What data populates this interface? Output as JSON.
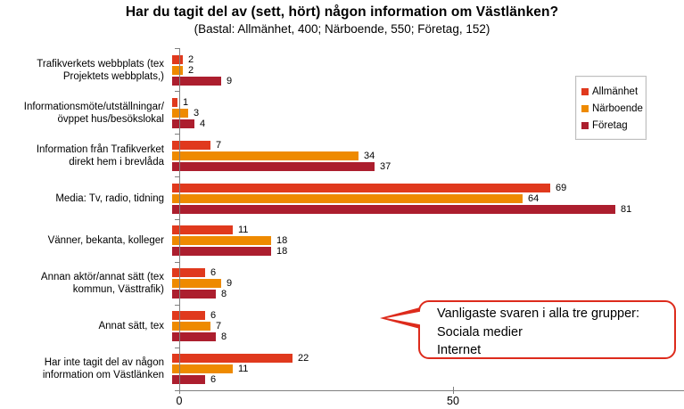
{
  "title": "Har du tagit del av (sett, hört) någon information om Västlänken?",
  "subtitle": "(Bastal: Allmänhet, 400; Närboende, 550; Företag, 152)",
  "chart_data": {
    "type": "bar",
    "orientation": "horizontal",
    "title": "Har du tagit del av (sett, hört) någon information om Västlänken?",
    "subtitle": "(Bastal: Allmänhet, 400; Närboende, 550; Företag, 152)",
    "categories": [
      "Trafikverkets webbplats (tex\nProjektets webbplats,)",
      "Informationsmöte/utställningar/\növppet hus/besökslokal",
      "Information från Trafikverket\ndirekt hem i brevlåda",
      "Media: Tv, radio, tidning",
      "Vänner, bekanta, kolleger",
      "Annan aktör/annat sätt (tex\nkommun, Västtrafik)",
      "Annat sätt, tex",
      "Har inte tagit del av någon\ninformation om Västlänken"
    ],
    "series": [
      {
        "name": "Allmänhet",
        "color": "#e0391d",
        "values": [
          2,
          1,
          7,
          69,
          11,
          6,
          6,
          22
        ]
      },
      {
        "name": "Närboende",
        "color": "#ee8a00",
        "values": [
          2,
          3,
          34,
          64,
          18,
          9,
          7,
          11
        ]
      },
      {
        "name": "Företag",
        "color": "#ac1e2e",
        "values": [
          9,
          4,
          37,
          81,
          18,
          8,
          8,
          6
        ]
      }
    ],
    "xlim": [
      0,
      92
    ],
    "x_ticks": [
      0,
      50
    ],
    "x_tick_labels": [
      "0",
      "50"
    ],
    "grid": false,
    "legend_position": "top-right",
    "value_labels": true
  },
  "legend": {
    "border_color": "#bfbfbf"
  },
  "callout": {
    "lines": [
      "Vanligaste svaren i alla tre grupper:",
      "Sociala medier",
      "Internet"
    ],
    "border_color": "#dd2b1c"
  },
  "axis_color": "#808080"
}
